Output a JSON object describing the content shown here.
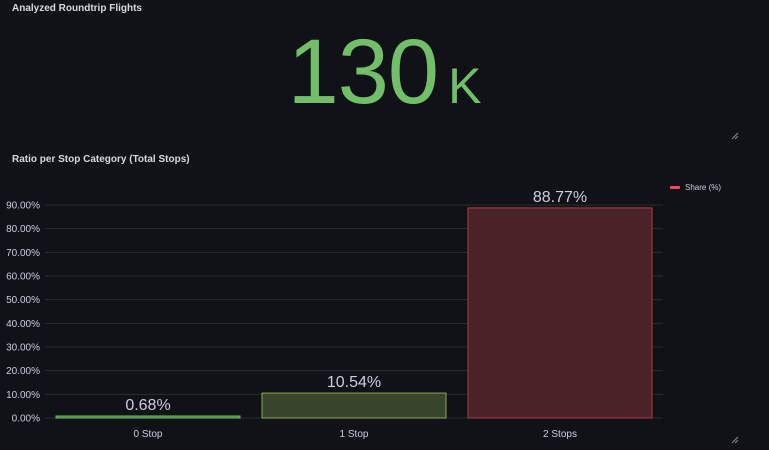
{
  "stat_panel": {
    "title": "Analyzed Roundtrip Flights",
    "value": "130",
    "unit": "K",
    "color": "#73bf69"
  },
  "bar_panel": {
    "title": "Ratio per Stop Category (Total Stops)"
  },
  "chart_data": {
    "type": "bar",
    "title": "Ratio per Stop Category (Total Stops)",
    "xlabel": "",
    "ylabel": "",
    "categories": [
      "0 Stop",
      "1 Stop",
      "2 Stops"
    ],
    "series": [
      {
        "name": "Share (%)",
        "values": [
          0.68,
          10.54,
          88.77
        ],
        "value_labels": [
          "0.68%",
          "10.54%",
          "88.77%"
        ],
        "bar_fills": [
          "#3f7a3a",
          "#37452a",
          "#4a2329"
        ],
        "bar_strokes": [
          "#73bf69",
          "#8ca55a",
          "#b43a46"
        ]
      }
    ],
    "ylim": [
      0,
      90
    ],
    "y_ticks": [
      0,
      10,
      20,
      30,
      40,
      50,
      60,
      70,
      80,
      90
    ],
    "y_tick_labels": [
      "0.00%",
      "10.00%",
      "20.00%",
      "30.00%",
      "40.00%",
      "50.00%",
      "60.00%",
      "70.00%",
      "80.00%",
      "90.00%"
    ],
    "grid": true,
    "legend": {
      "position": "top-right",
      "entries": [
        {
          "label": "Share (%)",
          "color": "#f2495c"
        }
      ]
    }
  }
}
